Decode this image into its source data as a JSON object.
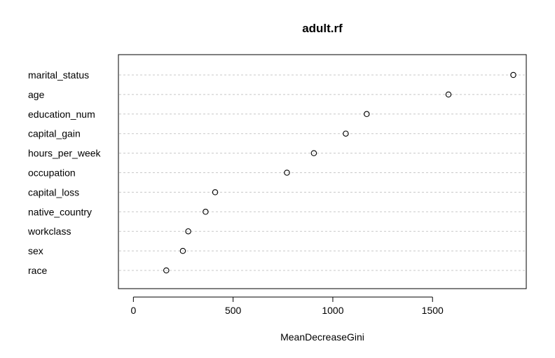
{
  "chart_data": {
    "type": "scatter",
    "title": "adult.rf",
    "xlabel": "MeanDecreaseGini",
    "ylabel": "",
    "categories": [
      "marital_status",
      "age",
      "education_num",
      "capital_gain",
      "hours_per_week",
      "occupation",
      "capital_loss",
      "native_country",
      "workclass",
      "sex",
      "race"
    ],
    "values": [
      1905,
      1580,
      1170,
      1065,
      905,
      770,
      410,
      362,
      275,
      248,
      165
    ],
    "xticks": [
      0,
      500,
      1000,
      1500
    ],
    "xlim": [
      -75,
      1970
    ],
    "grid": "horizontal dotted lines",
    "legend": "none"
  }
}
